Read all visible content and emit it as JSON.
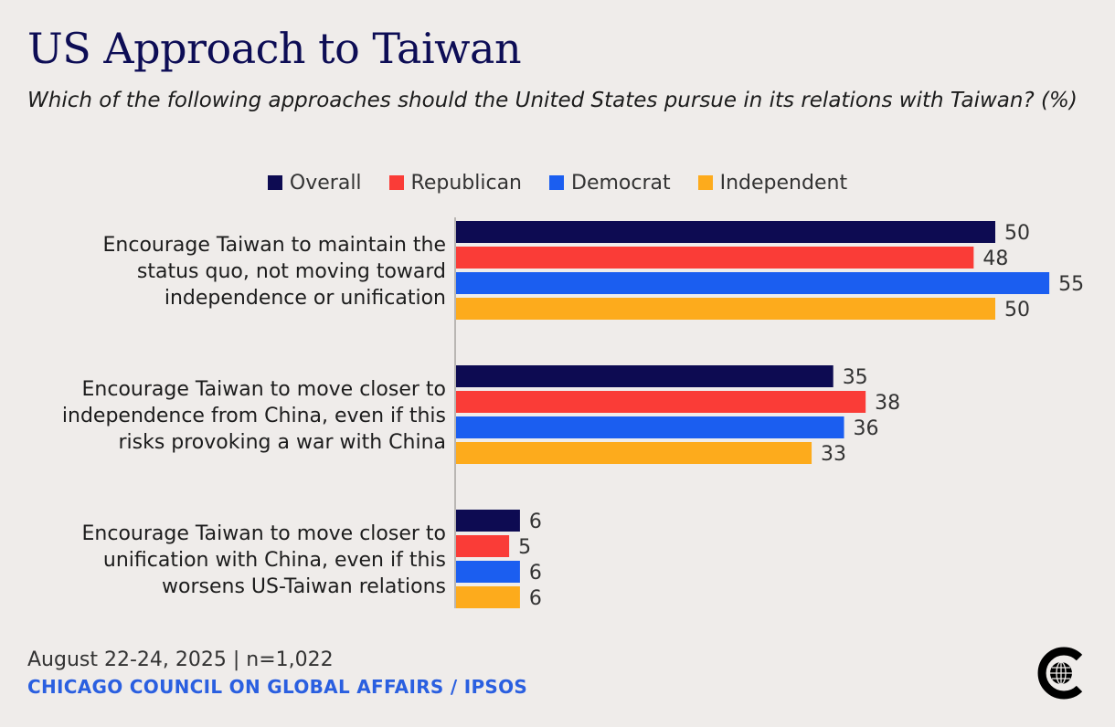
{
  "title": "US Approach to Taiwan",
  "subtitle": "Which of the following approaches should the United States pursue in its relations with Taiwan? (%)",
  "legend": [
    {
      "name": "Overall",
      "color": "#0d0b52"
    },
    {
      "name": "Republican",
      "color": "#fa3c37"
    },
    {
      "name": "Democrat",
      "color": "#1b5ef0"
    },
    {
      "name": "Independent",
      "color": "#fdab1c"
    }
  ],
  "chart_data": {
    "type": "bar",
    "orientation": "horizontal",
    "categories": [
      [
        "Encourage Taiwan to maintain the",
        "status quo, not moving toward",
        "independence or unification"
      ],
      [
        "Encourage Taiwan to move closer to",
        "independence from China, even if this",
        "risks provoking a war with China"
      ],
      [
        "Encourage Taiwan to move closer to",
        "unification with China, even if this",
        "worsens US-Taiwan relations"
      ]
    ],
    "series": [
      {
        "name": "Overall",
        "values": [
          50,
          35,
          6
        ]
      },
      {
        "name": "Republican",
        "values": [
          48,
          38,
          5
        ]
      },
      {
        "name": "Democrat",
        "values": [
          55,
          36,
          6
        ]
      },
      {
        "name": "Independent",
        "values": [
          50,
          33,
          6
        ]
      }
    ],
    "xlim": [
      0,
      58
    ],
    "legend_position": "top-center",
    "grid": false
  },
  "footer": {
    "date": "August 22-24, 2025 | n=1,022",
    "source": "CHICAGO COUNCIL ON GLOBAL AFFAIRS / IPSOS"
  },
  "logo": {
    "icon": "globe-c-icon"
  }
}
